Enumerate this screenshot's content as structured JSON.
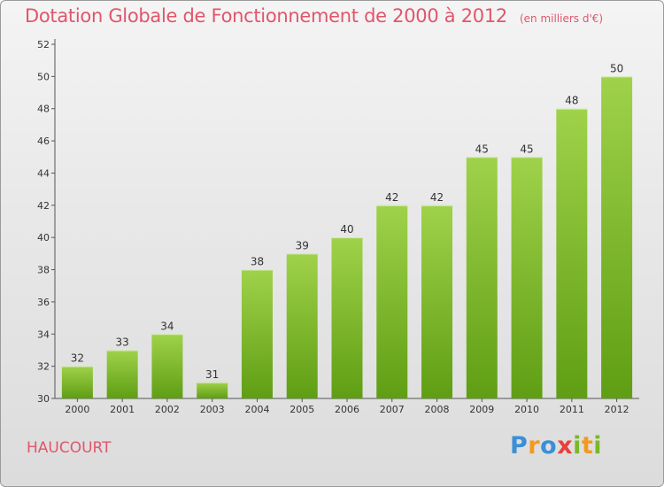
{
  "header": {
    "title": "Dotation Globale de Fonctionnement de 2000 à 2012",
    "subtitle": "(en milliers d'€)"
  },
  "footer": {
    "town": "HAUCOURT",
    "logo_letters": [
      {
        "char": "P",
        "color": "#3b8fd6"
      },
      {
        "char": "r",
        "color": "#f39a1e"
      },
      {
        "char": "o",
        "color": "#3b8fd6"
      },
      {
        "char": "x",
        "color": "#e8403a"
      },
      {
        "char": "i",
        "color": "#7ab829"
      },
      {
        "char": "t",
        "color": "#f39a1e"
      },
      {
        "char": "i",
        "color": "#7ab829"
      }
    ]
  },
  "chart_data": {
    "type": "bar",
    "categories": [
      "2000",
      "2001",
      "2002",
      "2003",
      "2004",
      "2005",
      "2006",
      "2007",
      "2008",
      "2009",
      "2010",
      "2011",
      "2012"
    ],
    "values": [
      32,
      33,
      34,
      31,
      38,
      39,
      40,
      42,
      42,
      45,
      45,
      48,
      50
    ],
    "ylim": [
      30,
      52
    ],
    "yticks": [
      30,
      32,
      34,
      36,
      38,
      40,
      42,
      44,
      46,
      48,
      50,
      52
    ],
    "grid": false,
    "bar_color_top": "#9fd24a",
    "bar_color_bottom": "#5f9e14",
    "axis_color": "#555555"
  }
}
